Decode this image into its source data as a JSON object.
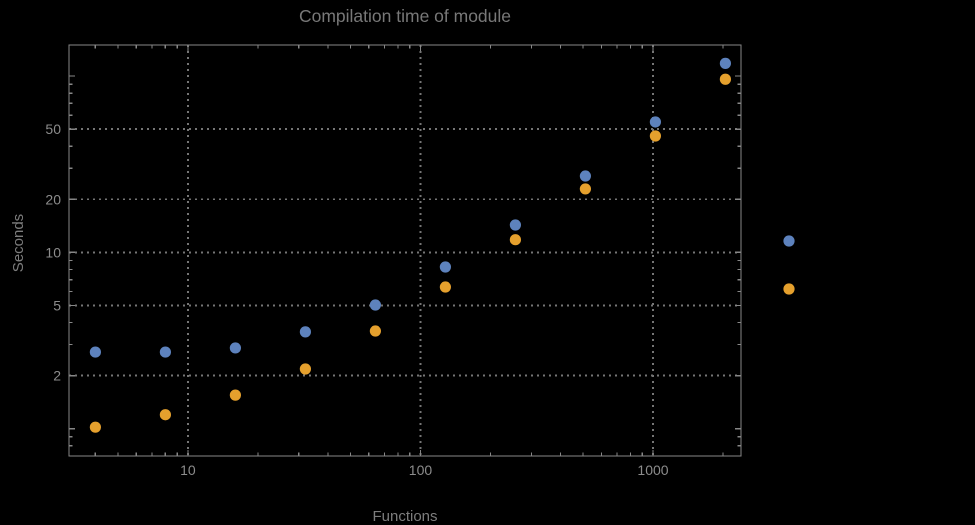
{
  "chart_data": {
    "type": "scatter",
    "title": "Compilation time of module",
    "xlabel": "Functions",
    "ylabel": "Seconds",
    "x_scale": "log",
    "y_scale": "log",
    "xlim": [
      3.08,
      2390
    ],
    "ylim": [
      0.7,
      150
    ],
    "x_ticks": [
      10,
      100,
      1000
    ],
    "x_tick_labels": [
      "10",
      "100",
      "1000"
    ],
    "y_ticks": [
      2,
      5,
      10,
      20,
      50
    ],
    "y_tick_labels": [
      "2",
      "5",
      "10",
      "20",
      "50"
    ],
    "grid": true,
    "grid_style": "dotted",
    "x": [
      4,
      8,
      16,
      32,
      64,
      128,
      256,
      512,
      1024,
      2048
    ],
    "series": [
      {
        "name": "blue",
        "color": "#5d82bd",
        "values": [
          2.72,
          2.72,
          2.87,
          3.54,
          5.03,
          8.26,
          14.3,
          27.1,
          54.9,
          118
        ]
      },
      {
        "name": "orange",
        "color": "#e5a02d",
        "values": [
          1.02,
          1.2,
          1.55,
          2.18,
          3.58,
          6.36,
          11.8,
          22.9,
          45.7,
          95.9
        ]
      }
    ],
    "legend_position": "right",
    "legend_markers": [
      {
        "series": "blue",
        "color": "#5d82bd"
      },
      {
        "series": "orange",
        "color": "#e5a02d"
      }
    ]
  },
  "colors": {
    "background": "#000000",
    "frame": "#878787",
    "grid": "#757575",
    "tick_label": "#8c8c8c",
    "title": "#787878",
    "axis_label": "#7d7d7d"
  }
}
